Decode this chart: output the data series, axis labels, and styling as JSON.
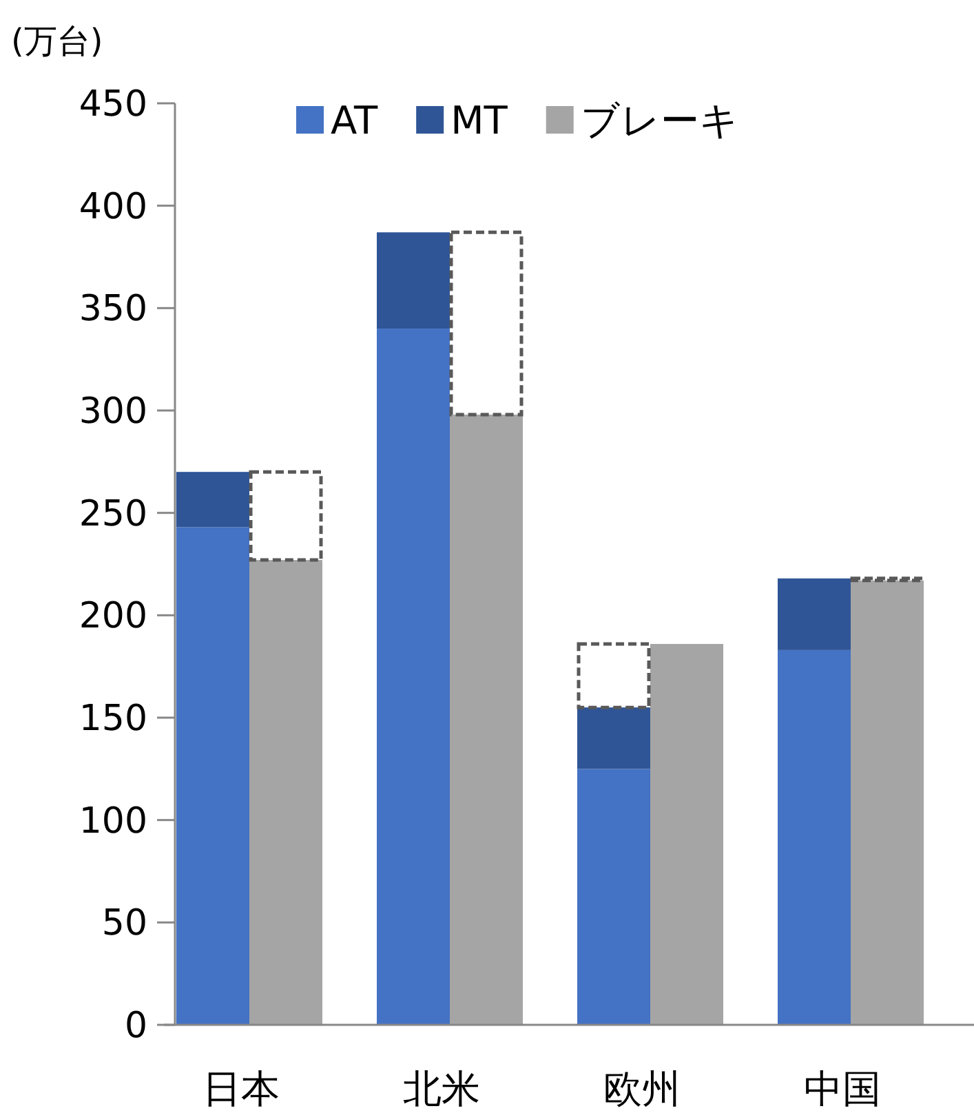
{
  "chart_data": {
    "type": "bar",
    "ylabel": "(万台)",
    "categories": [
      "日本",
      "北米",
      "欧州",
      "中国"
    ],
    "ylim": [
      0,
      450
    ],
    "yticks": [
      0,
      50,
      100,
      150,
      200,
      250,
      300,
      350,
      400,
      450
    ],
    "grid": false,
    "legend": "top",
    "series": [
      {
        "name": "AT",
        "color": "#4472c4",
        "base": [
          0,
          0,
          0,
          0
        ],
        "values": [
          243,
          340,
          125,
          183
        ]
      },
      {
        "name": "MT",
        "color": "#2f5597",
        "base": [
          243,
          340,
          125,
          183
        ],
        "values": [
          27,
          47,
          30,
          35
        ]
      },
      {
        "name": "ブレーキ",
        "color": "#a5a5a5",
        "base": [
          0,
          0,
          0,
          0
        ],
        "values": [
          227,
          298,
          186,
          217
        ]
      },
      {
        "color": "#595959",
        "line_style": "dashed",
        "base": [
          227,
          298,
          155,
          217
        ],
        "values": [
          43,
          89,
          31,
          1
        ]
      }
    ]
  }
}
